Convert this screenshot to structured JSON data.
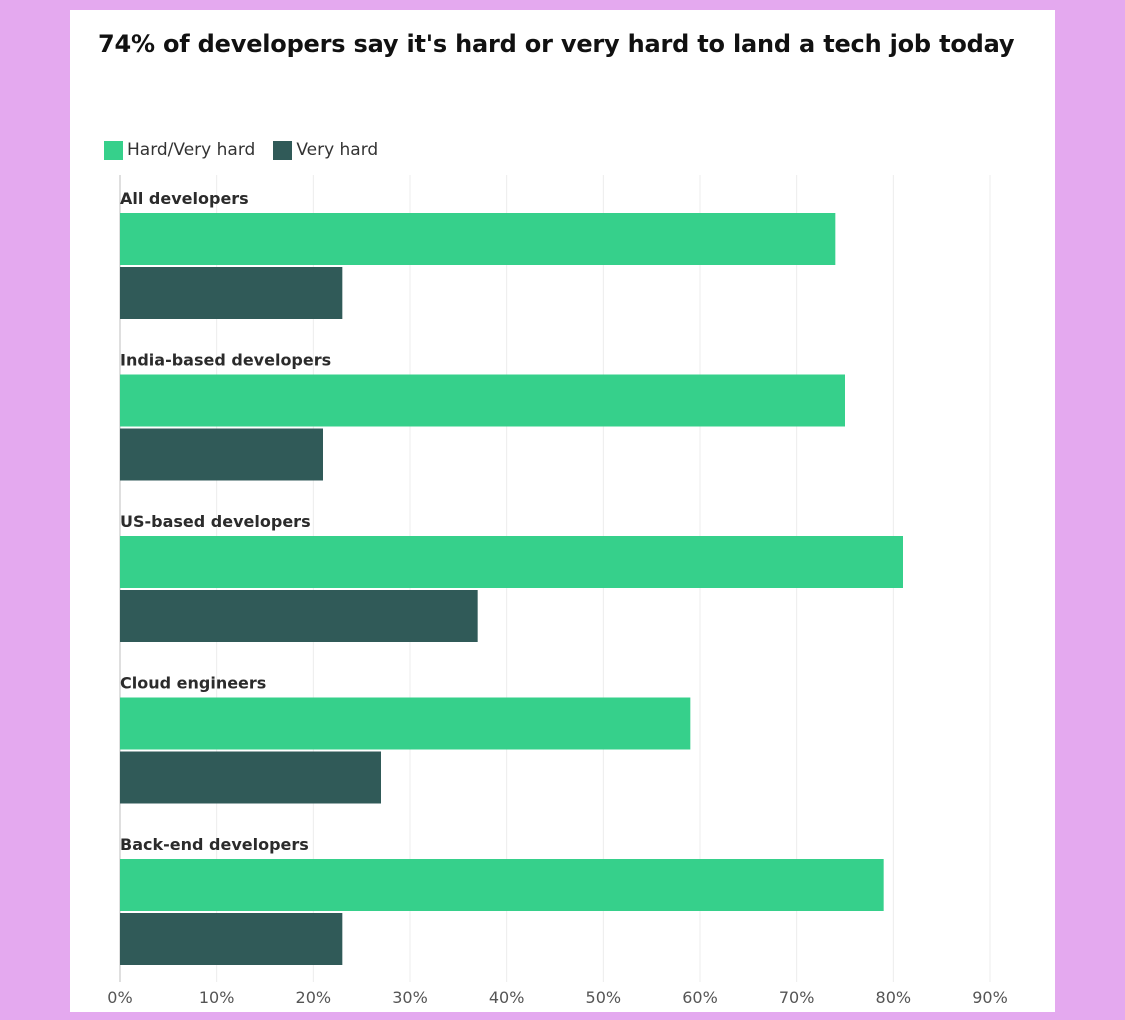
{
  "chart_data": {
    "type": "bar",
    "orientation": "horizontal",
    "title": "74% of developers say it's hard or very hard to land a tech job today",
    "categories": [
      "All developers",
      "India-based developers",
      "US-based developers",
      "Cloud engineers",
      "Back-end developers"
    ],
    "series": [
      {
        "name": "Hard/Very hard",
        "color": "#36d08b",
        "values": [
          74,
          75,
          81,
          59,
          79
        ]
      },
      {
        "name": "Very hard",
        "color": "#305a58",
        "values": [
          23,
          21,
          37,
          27,
          23
        ]
      }
    ],
    "xlim": [
      0,
      90
    ],
    "xticks": [
      "0%",
      "10%",
      "20%",
      "30%",
      "40%",
      "50%",
      "60%",
      "70%",
      "80%",
      "90%"
    ],
    "grid": true,
    "legend": "top-left"
  }
}
